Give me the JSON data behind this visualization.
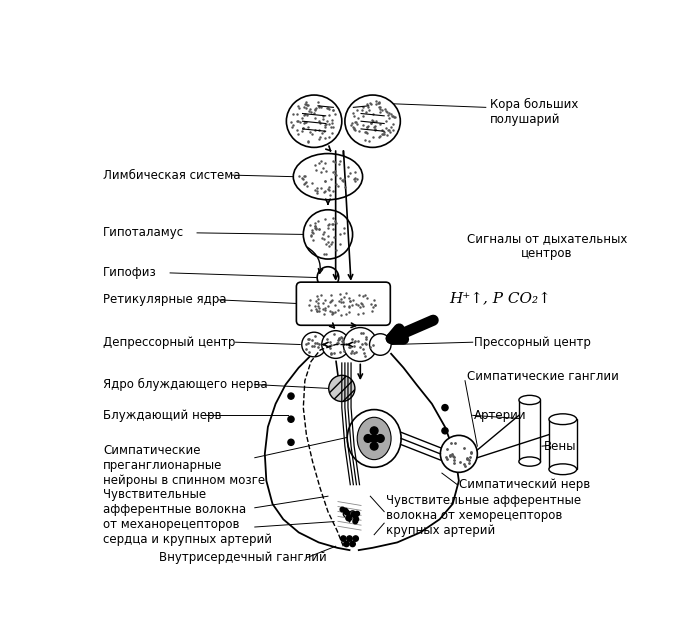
{
  "background": "#ffffff",
  "labels": {
    "kora": "Кора больших\nполушарий",
    "limbic": "Лимбическая система",
    "gipotal": "Гипоталамус",
    "gipofiz": "Гипофиз",
    "retikul": "Ретикулярные ядра",
    "depressor": "Депрессорный центр",
    "vagus_nucleus": "Ядро блуждающего нерва",
    "vagus": "Блуждающий нерв",
    "simpat_pre": "Симпатические\nпреганглионарные\nнейроны в спинном мозге",
    "chuvst_mech": "Чувствительные\nафферентные волокна\nот механорецепторов\nсердца и крупных артерий",
    "vnytricard": "Внутрисердечный ганглий",
    "signaly": "Сигналы от дыхательных\nцентров",
    "hco2": "H⁺↑, ​P CO₂↑",
    "pressor": "Прессорный центр",
    "simpat_gang": "Симпатические ганглии",
    "arteries": "Артерии",
    "veins": "Вены",
    "simpat_nerv": "Симпатический нерв",
    "chuvst_chem": "Чувствительные афферентные\nволокна от хеморецепторов\nкрупных артерий"
  },
  "text_color": "#000000",
  "line_color": "#000000"
}
